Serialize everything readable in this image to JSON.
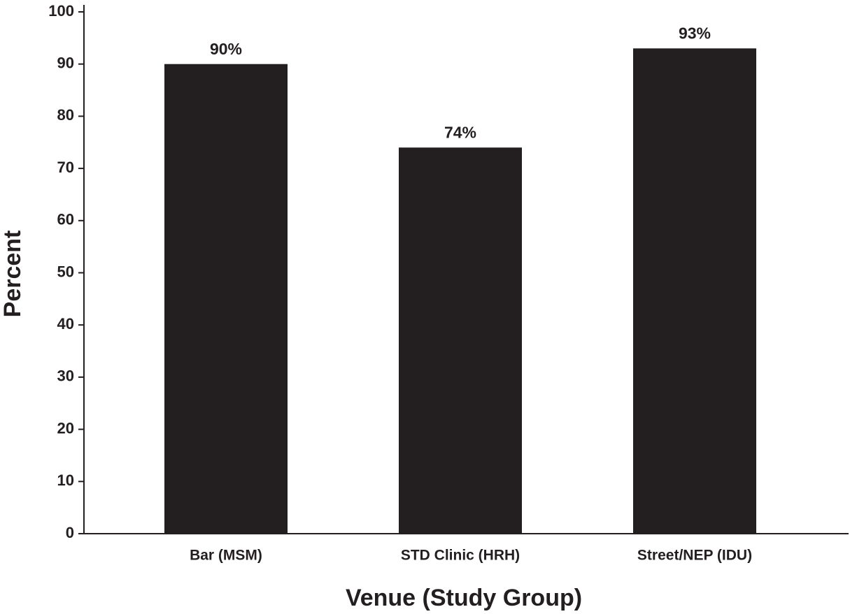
{
  "chart_data": {
    "type": "bar",
    "categories": [
      "Bar (MSM)",
      "STD Clinic (HRH)",
      "Street/NEP (IDU)"
    ],
    "values": [
      90,
      74,
      93
    ],
    "value_labels": [
      "90%",
      "74%",
      "93%"
    ],
    "color": "#231f20",
    "x_label": "Venue (Study Group)",
    "y_label": "Percent",
    "ylim": [
      0,
      100
    ],
    "yticks": [
      0,
      10,
      20,
      30,
      40,
      50,
      60,
      70,
      80,
      90,
      100
    ],
    "grid": false
  }
}
